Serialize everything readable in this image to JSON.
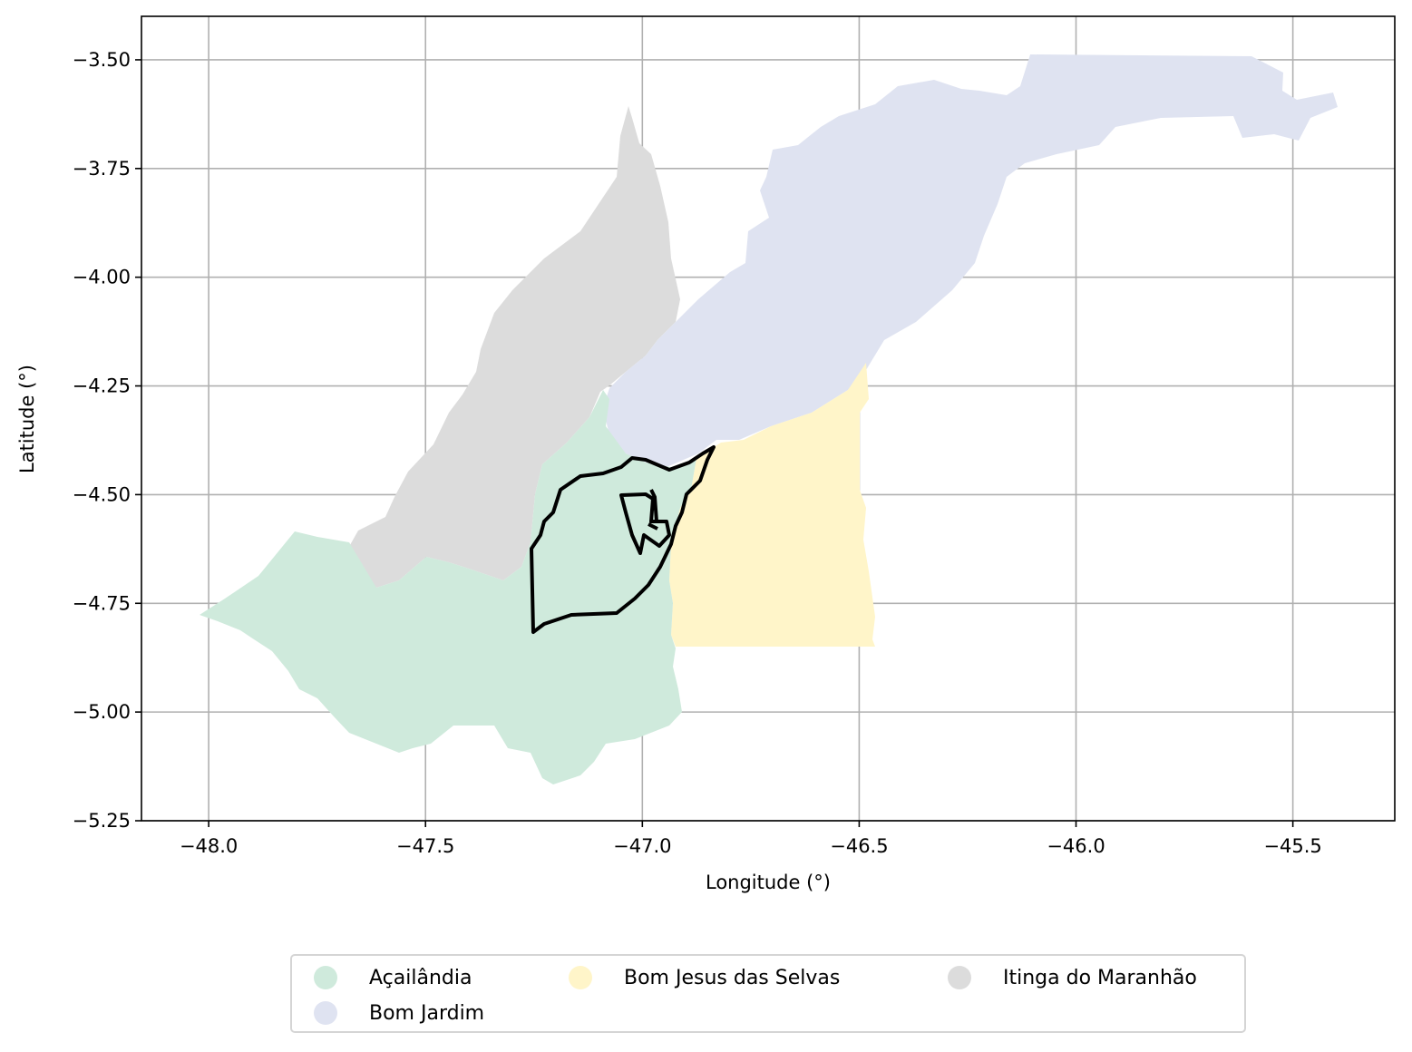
{
  "chart_data": {
    "type": "map",
    "xlabel": "Longitude (°)",
    "ylabel": "Latitude (°)",
    "xlim": [
      -48.155,
      -45.265
    ],
    "ylim": [
      -5.25,
      -3.4
    ],
    "xticks": [
      "−48.0",
      "−47.5",
      "−47.0",
      "−46.5",
      "−46.0",
      "−45.5"
    ],
    "yticks": [
      "−3.50",
      "−3.75",
      "−4.00",
      "−4.25",
      "−4.50",
      "−4.75",
      "−5.00",
      "−5.25"
    ],
    "grid": true,
    "legend_position": "bottom-center",
    "regions": [
      {
        "name": "Açailândia",
        "color": "#cfeadc"
      },
      {
        "name": "Bom Jardim",
        "color": "#dfe3f1"
      },
      {
        "name": "Bom Jesus das Selvas",
        "color": "#fff5c9"
      },
      {
        "name": "Itinga do Maranhão",
        "color": "#dcdcdc"
      }
    ],
    "outline_color": "#000000"
  }
}
